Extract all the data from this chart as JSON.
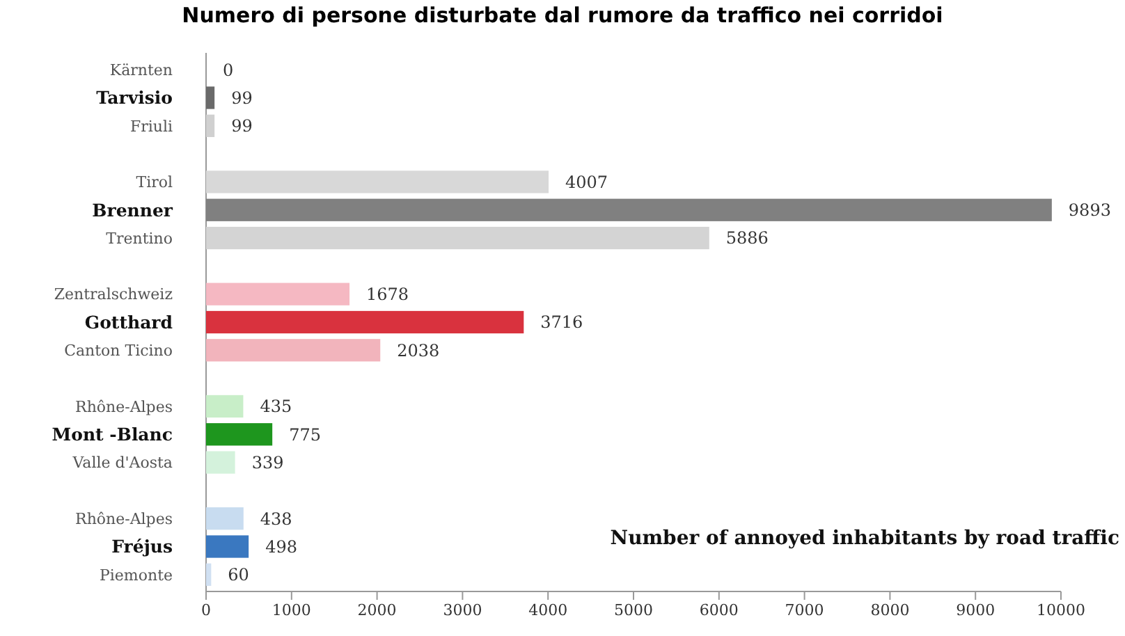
{
  "chart_data": {
    "type": "bar",
    "orientation": "horizontal",
    "title": "Numero di persone disturbate dal rumore da traffico nei corridoi",
    "categories": [
      "Kärnten",
      "Tarvisio",
      "Friuli",
      null,
      "Tirol",
      "Brenner",
      "Trentino",
      null,
      "Zentralschweiz",
      "Gotthard",
      "Canton Ticino",
      null,
      "Rhône-Alpes",
      "Mont -Blanc",
      "Valle d'Aosta",
      null,
      "Rhône-Alpes",
      "Fréjus",
      "Piemonte"
    ],
    "values": [
      0,
      99,
      99,
      null,
      4007,
      9893,
      5886,
      null,
      1678,
      3716,
      2038,
      null,
      435,
      775,
      339,
      null,
      438,
      498,
      60
    ],
    "colors": [
      "#d0d0d0",
      "#6a6a6a",
      "#d0d0d0",
      null,
      "#d8d8d8",
      "#808080",
      "#d4d4d4",
      null,
      "#f5b8c2",
      "#d9323e",
      "#f2b4bc",
      null,
      "#c8eec8",
      "#1e961e",
      "#d4f2dc",
      null,
      "#c8dcf0",
      "#3a78c0",
      "#d0e0f2"
    ],
    "data_labels": true,
    "xlim": [
      0,
      10000
    ],
    "xticks": [
      0,
      1000,
      2000,
      3000,
      4000,
      5000,
      6000,
      7000,
      8000,
      9000,
      10000
    ],
    "annotations": [
      "Number of annoyed inhabitants by road traffic"
    ]
  }
}
